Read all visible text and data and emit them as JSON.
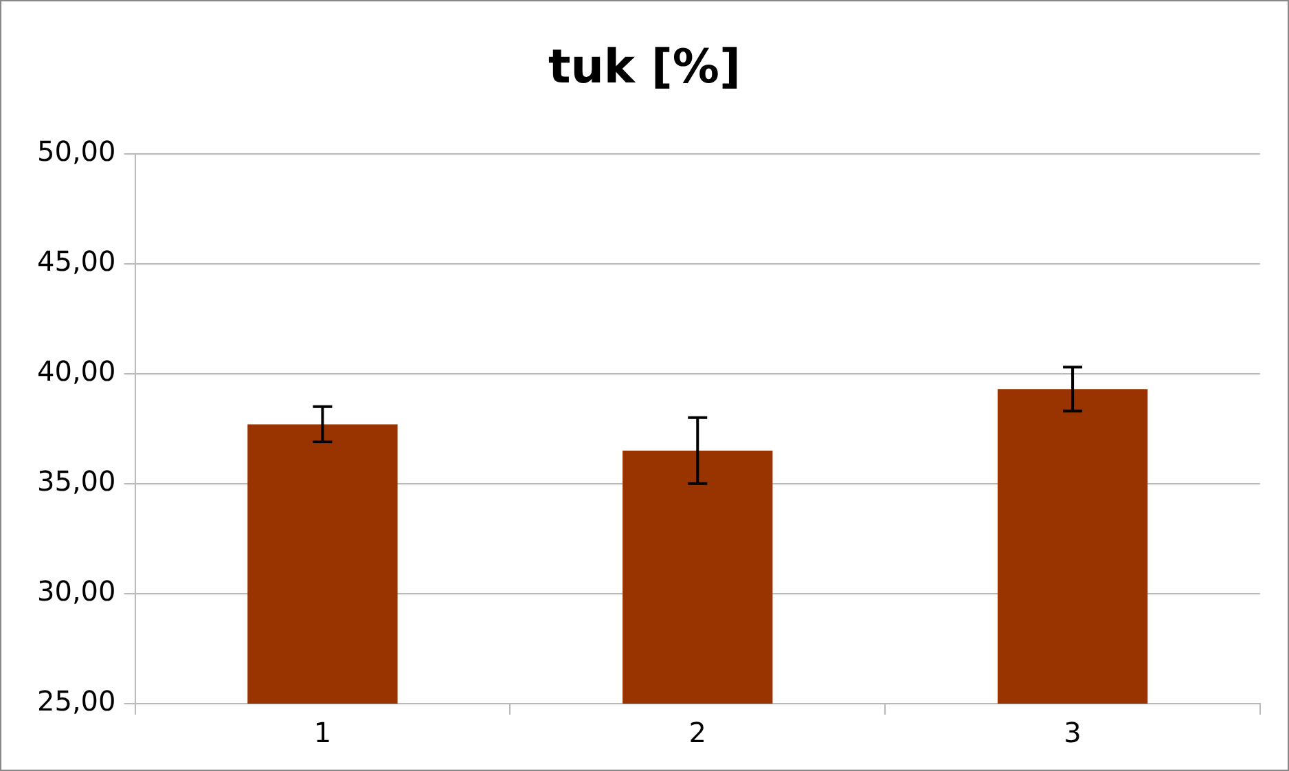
{
  "chart_data": {
    "type": "bar",
    "title": "tuk [%]",
    "categories": [
      "1",
      "2",
      "3"
    ],
    "values": [
      37.7,
      36.5,
      39.3
    ],
    "color": "#993300",
    "errors": [
      0.8,
      1.5,
      1.0
    ],
    "ylim": [
      25,
      50
    ],
    "yticks": [
      {
        "value": 25,
        "label": "25,00"
      },
      {
        "value": 30,
        "label": "30,00"
      },
      {
        "value": 35,
        "label": "35,00"
      },
      {
        "value": 40,
        "label": "40,00"
      },
      {
        "value": 45,
        "label": "45,00"
      },
      {
        "value": 50,
        "label": "50,00"
      }
    ],
    "grid": "y",
    "legend": false
  }
}
